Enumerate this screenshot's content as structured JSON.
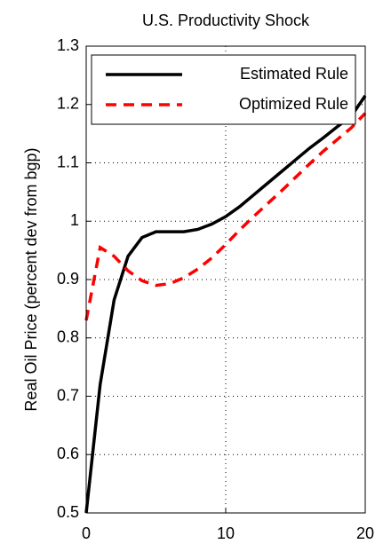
{
  "chart_data": {
    "type": "line",
    "title": "U.S. Productivity Shock",
    "y_label": "Real Oil Price (percent dev from bgp)",
    "x": [
      0,
      1,
      2,
      3,
      4,
      5,
      6,
      7,
      8,
      9,
      10,
      11,
      12,
      13,
      14,
      15,
      16,
      17,
      18,
      19,
      20
    ],
    "series": [
      {
        "name": "Estimated Rule",
        "color": "#000000",
        "dashed": false,
        "values": [
          0.5,
          0.72,
          0.865,
          0.94,
          0.972,
          0.982,
          0.982,
          0.982,
          0.986,
          0.995,
          1.008,
          1.025,
          1.045,
          1.065,
          1.085,
          1.105,
          1.125,
          1.143,
          1.162,
          1.18,
          1.215
        ]
      },
      {
        "name": "Optimized Rule",
        "color": "#ff0000",
        "dashed": true,
        "values": [
          0.83,
          0.955,
          0.94,
          0.915,
          0.898,
          0.89,
          0.893,
          0.903,
          0.918,
          0.937,
          0.96,
          0.985,
          1.008,
          1.03,
          1.052,
          1.075,
          1.098,
          1.12,
          1.14,
          1.16,
          1.185
        ]
      }
    ],
    "xlim": [
      0,
      20
    ],
    "xticks": [
      0,
      10,
      20
    ],
    "ylim": [
      0.5,
      1.3
    ],
    "yticks": [
      0.5,
      0.6,
      0.7,
      0.8,
      0.9,
      1,
      1.1,
      1.2,
      1.3
    ],
    "grid": true,
    "legend": "top-left"
  }
}
